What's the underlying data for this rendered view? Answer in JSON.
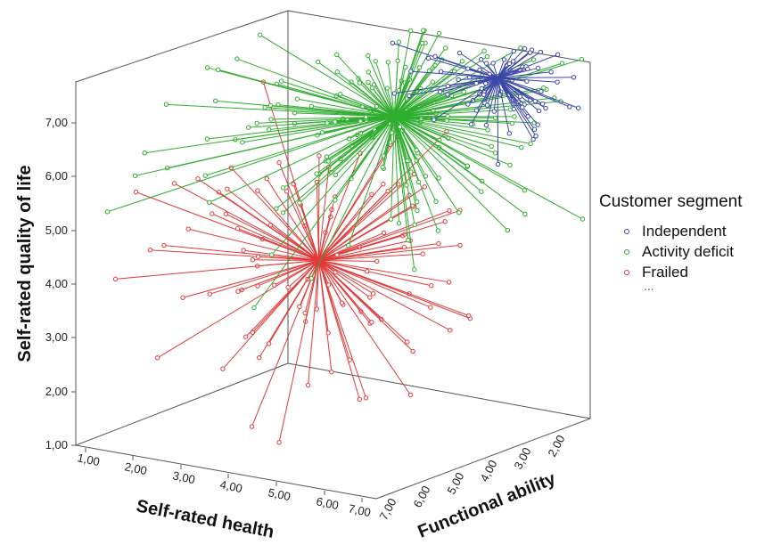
{
  "chart_data": {
    "type": "scatter",
    "subtype": "3d-scatter-with-centroid-spikes",
    "axes": {
      "x": {
        "label": "Self-rated health",
        "ticks": [
          "1,00",
          "2,00",
          "3,00",
          "4,00",
          "5,00",
          "6,00",
          "7,00"
        ],
        "range": [
          1,
          7
        ]
      },
      "y": {
        "label": "Self-rated quality of life",
        "ticks": [
          "1,00",
          "2,00",
          "3,00",
          "4,00",
          "5,00",
          "6,00",
          "7,00"
        ],
        "range": [
          1,
          7.8
        ]
      },
      "z": {
        "label": "Functional ability",
        "ticks": [
          "7,00",
          "6,00",
          "5,00",
          "4,00",
          "3,00",
          "2,00"
        ],
        "range": [
          7,
          1.5
        ]
      }
    },
    "legend": {
      "title": "Customer segment",
      "position": "right",
      "overflow_text": "..."
    },
    "series": [
      {
        "name": "Independent",
        "color": "#3c46a8",
        "centroid": {
          "health": 5.7,
          "quality": 7.3,
          "function": 2.1
        },
        "n_points": 80
      },
      {
        "name": "Activity deficit",
        "color": "#2fad2f",
        "centroid": {
          "health": 4.9,
          "quality": 6.9,
          "function": 3.8
        },
        "n_points": 190
      },
      {
        "name": "Frailed",
        "color": "#e03a3a",
        "centroid": {
          "health": 4.2,
          "quality": 4.4,
          "function": 4.9
        },
        "n_points": 110
      }
    ]
  }
}
